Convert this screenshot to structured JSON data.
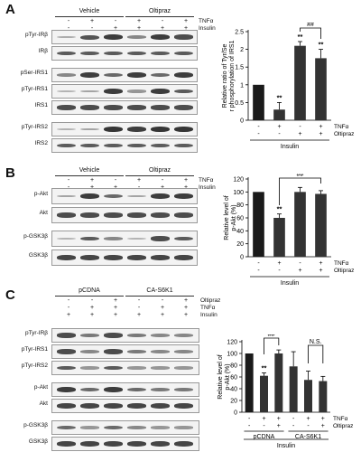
{
  "panels": [
    {
      "letter": "A",
      "groups": [
        "Vehicle",
        "Oltipraz"
      ],
      "treatments": [
        {
          "label": "TNFα",
          "signs": [
            "-",
            "+",
            "-",
            "+",
            "-",
            "+"
          ]
        },
        {
          "label": "Insulin",
          "signs": [
            "-",
            "-",
            "+",
            "+",
            "+",
            "+"
          ]
        }
      ],
      "blots": [
        {
          "label": "pTyr-IRβ",
          "levels": [
            0.15,
            0.75,
            0.9,
            0.4,
            0.9,
            0.8
          ]
        },
        {
          "label": "IRβ",
          "levels": [
            0.7,
            0.7,
            0.7,
            0.7,
            0.7,
            0.7
          ]
        },
        {
          "label": "pSer-IRS1",
          "levels": [
            0.4,
            0.9,
            0.6,
            0.9,
            0.6,
            0.9
          ]
        },
        {
          "label": "pTyr-IRS1",
          "levels": [
            0.1,
            0.2,
            0.9,
            0.3,
            0.9,
            0.7
          ]
        },
        {
          "label": "IRS1",
          "levels": [
            0.8,
            0.8,
            0.8,
            0.8,
            0.8,
            0.8
          ]
        },
        {
          "label": "pTyr-IRS2",
          "levels": [
            0.1,
            0.2,
            0.95,
            0.9,
            0.95,
            0.95
          ]
        },
        {
          "label": "IRS2",
          "levels": [
            0.7,
            0.7,
            0.7,
            0.7,
            0.7,
            0.7
          ]
        }
      ]
    },
    {
      "letter": "B",
      "groups": [
        "Vehicle",
        "Oltipraz"
      ],
      "treatments": [
        {
          "label": "TNFα",
          "signs": [
            "-",
            "+",
            "-",
            "+",
            "-",
            "+"
          ]
        },
        {
          "label": "Insulin",
          "signs": [
            "-",
            "+",
            "+",
            "-",
            "+",
            "+"
          ]
        }
      ],
      "blots": [
        {
          "label": "p-Akt",
          "levels": [
            0.2,
            0.9,
            0.6,
            0.2,
            0.9,
            0.9
          ]
        },
        {
          "label": "Akt",
          "levels": [
            0.8,
            0.8,
            0.8,
            0.8,
            0.8,
            0.8
          ]
        },
        {
          "label": "p-GSK3β",
          "levels": [
            0.1,
            0.7,
            0.4,
            0.1,
            0.8,
            0.7
          ]
        },
        {
          "label": "GSK3β",
          "levels": [
            0.85,
            0.85,
            0.85,
            0.85,
            0.85,
            0.85
          ]
        }
      ]
    },
    {
      "letter": "C",
      "groups": [
        "pCDNA",
        "CA-S6K1"
      ],
      "treatments": [
        {
          "label": "Oltipraz",
          "signs": [
            "-",
            "-",
            "+",
            "-",
            "-",
            "+"
          ]
        },
        {
          "label": "TNFα",
          "signs": [
            "-",
            "+",
            "+",
            "-",
            "+",
            "+"
          ]
        },
        {
          "label": "Insulin",
          "signs": [
            "+",
            "+",
            "+",
            "+",
            "+",
            "+"
          ]
        }
      ],
      "blots": [
        {
          "label": "pTyr-IRβ",
          "levels": [
            0.8,
            0.5,
            0.8,
            0.5,
            0.4,
            0.4
          ]
        },
        {
          "label": "pTyr-IRS1",
          "levels": [
            0.8,
            0.4,
            0.8,
            0.5,
            0.4,
            0.4
          ]
        },
        {
          "label": "pTyr-IRS2",
          "levels": [
            0.7,
            0.3,
            0.7,
            0.3,
            0.3,
            0.3
          ]
        },
        {
          "label": "p-Akt",
          "levels": [
            0.9,
            0.6,
            0.9,
            0.6,
            0.5,
            0.5
          ]
        },
        {
          "label": "Akt",
          "levels": [
            0.85,
            0.85,
            0.85,
            0.85,
            0.85,
            0.85
          ]
        },
        {
          "label": "p-GSK3β",
          "levels": [
            0.6,
            0.3,
            0.6,
            0.4,
            0.3,
            0.3
          ]
        },
        {
          "label": "GSK3β",
          "levels": [
            0.85,
            0.85,
            0.85,
            0.85,
            0.85,
            0.85
          ]
        }
      ]
    }
  ],
  "chart_data": [
    {
      "type": "bar",
      "title": "",
      "ylabel": "Relative ratio of Tyr/Ser phosphorylation of IRS1",
      "xlabel": "Insulin",
      "ylim": [
        0,
        2.5
      ],
      "yticks": [
        "0",
        "0.5",
        "1",
        "1.5",
        "2",
        "2.5"
      ],
      "values": [
        1.0,
        0.3,
        2.1,
        1.75
      ],
      "errors": [
        0,
        0.2,
        0.12,
        0.25
      ],
      "stars": [
        "",
        "**",
        "**",
        "**"
      ],
      "conditions": [
        {
          "label": "TNFα",
          "signs": [
            "-",
            "+",
            "-",
            "+"
          ]
        },
        {
          "label": "Oltipraz",
          "signs": [
            "-",
            "-",
            "+",
            "+"
          ]
        }
      ],
      "brackets": [
        {
          "text": "##"
        }
      ]
    },
    {
      "type": "bar",
      "title": "",
      "ylabel": "Relative level of p-Akt (%)",
      "xlabel": "Insulin",
      "ylim": [
        0,
        120
      ],
      "yticks": [
        "0",
        "20",
        "40",
        "60",
        "80",
        "100",
        "120"
      ],
      "values": [
        100,
        60,
        100,
        97
      ],
      "errors": [
        0,
        6,
        7,
        5
      ],
      "stars": [
        "",
        "**",
        "",
        ""
      ],
      "conditions": [
        {
          "label": "TNFα",
          "signs": [
            "-",
            "+",
            "-",
            "+"
          ]
        },
        {
          "label": "Oltipraz",
          "signs": [
            "-",
            "-",
            "+",
            "+"
          ]
        }
      ],
      "brackets": [
        {
          "text": "##"
        }
      ]
    },
    {
      "type": "bar",
      "title": "",
      "ylabel": "Relative level of p-Akt (%)",
      "xlabel": "Insulin",
      "ylim": [
        0,
        120
      ],
      "yticks": [
        "0",
        "20",
        "40",
        "60",
        "80",
        "100",
        "120"
      ],
      "values": [
        100,
        62,
        100,
        78,
        55,
        53
      ],
      "errors": [
        0,
        5,
        6,
        25,
        15,
        8
      ],
      "stars": [
        "",
        "**",
        "",
        "",
        "",
        ""
      ],
      "conditions": [
        {
          "label": "TNFα",
          "signs": [
            "-",
            "+",
            "+",
            "-",
            "+",
            "+"
          ]
        },
        {
          "label": "Oltipraz",
          "signs": [
            "-",
            "-",
            "+",
            "-",
            "-",
            "+"
          ]
        }
      ],
      "group_labels": [
        "pCDNA",
        "CA-S6K1"
      ],
      "brackets": [
        {
          "text": "##"
        },
        {
          "text": "N.S."
        }
      ]
    }
  ]
}
